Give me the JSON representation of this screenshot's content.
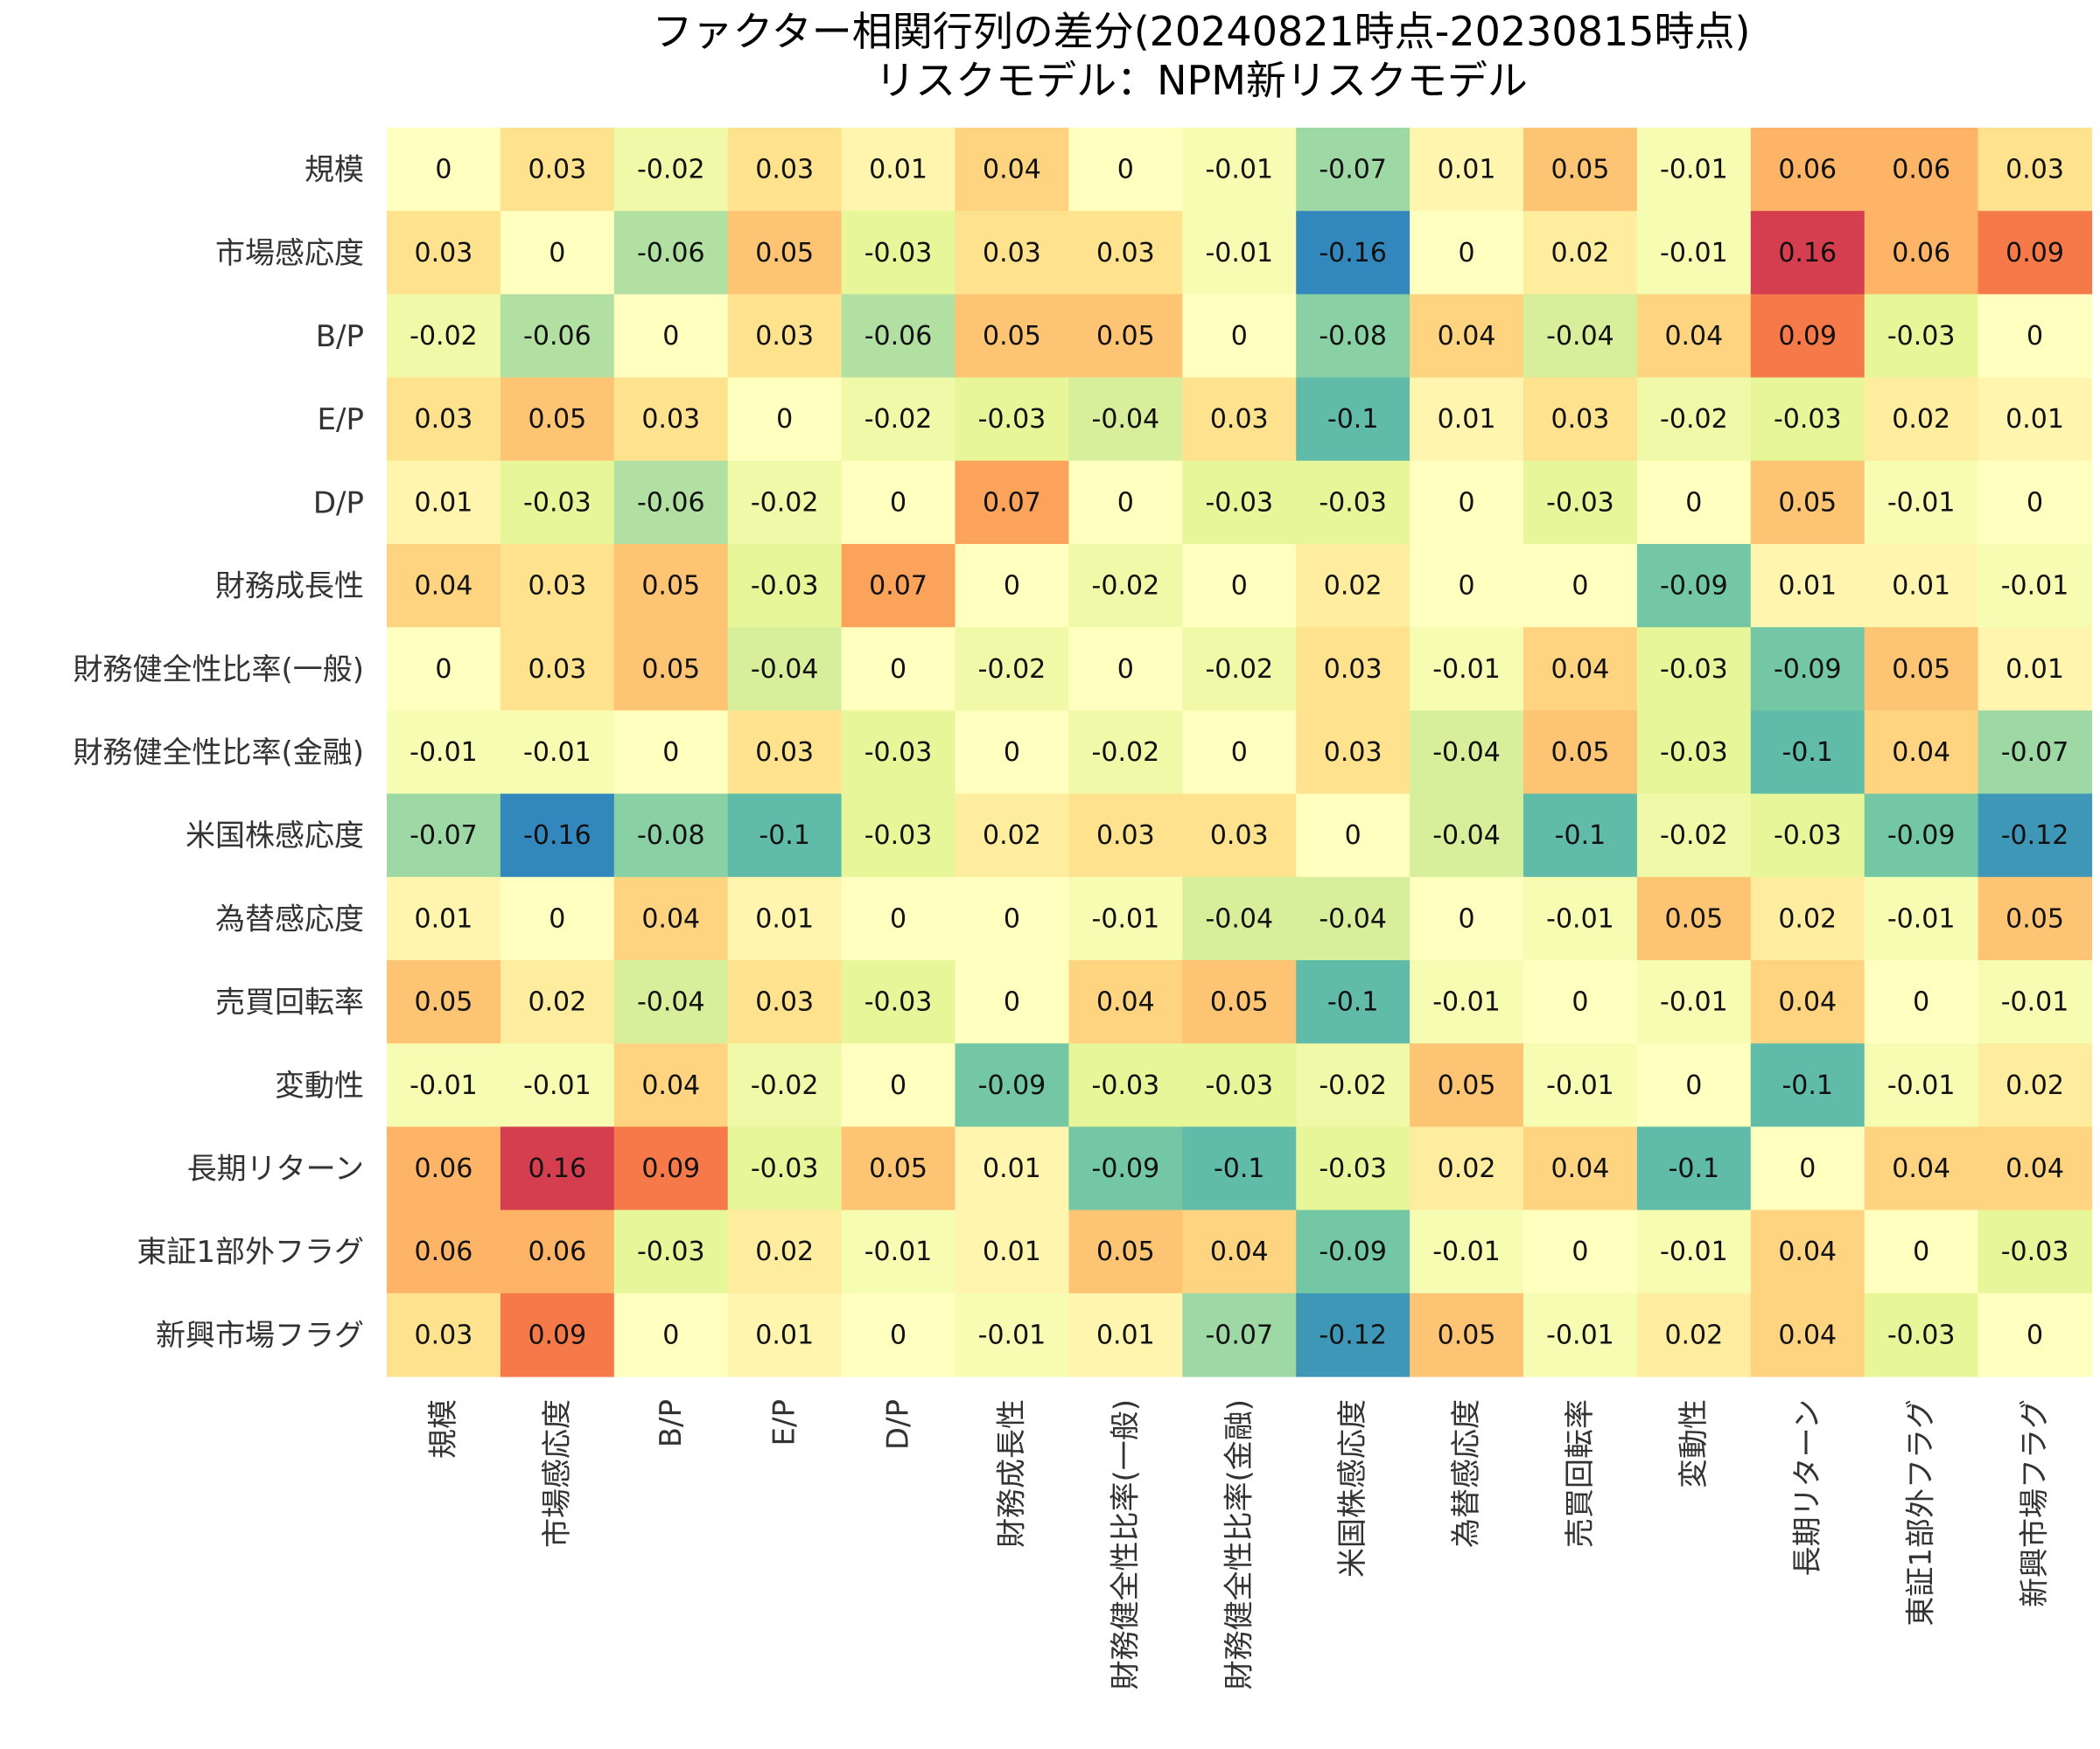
{
  "chart_data": {
    "type": "heatmap",
    "title": "ファクター相関行列の差分(20240821時点-20230815時点)",
    "subtitle": "リスクモデル：NPM新リスクモデル",
    "xlabel": "",
    "ylabel": "",
    "colormap": "Spectral_r",
    "vmin": -0.16,
    "vmax": 0.16,
    "row_labels": [
      "規模",
      "市場感応度",
      "B/P",
      "E/P",
      "D/P",
      "財務成長性",
      "財務健全性比率(一般)",
      "財務健全性比率(金融)",
      "米国株感応度",
      "為替感応度",
      "売買回転率",
      "変動性",
      "長期リターン",
      "東証1部外フラグ",
      "新興市場フラグ"
    ],
    "col_labels": [
      "規模",
      "市場感応度",
      "B/P",
      "E/P",
      "D/P",
      "財務成長性",
      "財務健全性比率(一般)",
      "財務健全性比率(金融)",
      "米国株感応度",
      "為替感応度",
      "売買回転率",
      "変動性",
      "長期リターン",
      "東証1部外フラグ",
      "新興市場フラグ"
    ],
    "values": [
      [
        0,
        0.03,
        -0.02,
        0.03,
        0.01,
        0.04,
        0,
        -0.01,
        -0.07,
        0.01,
        0.05,
        -0.01,
        0.06,
        0.06,
        0.03
      ],
      [
        0.03,
        0,
        -0.06,
        0.05,
        -0.03,
        0.03,
        0.03,
        -0.01,
        -0.16,
        0,
        0.02,
        -0.01,
        0.16,
        0.06,
        0.09
      ],
      [
        -0.02,
        -0.06,
        0,
        0.03,
        -0.06,
        0.05,
        0.05,
        0,
        -0.08,
        0.04,
        -0.04,
        0.04,
        0.09,
        -0.03,
        0
      ],
      [
        0.03,
        0.05,
        0.03,
        0,
        -0.02,
        -0.03,
        -0.04,
        0.03,
        -0.1,
        0.01,
        0.03,
        -0.02,
        -0.03,
        0.02,
        0.01
      ],
      [
        0.01,
        -0.03,
        -0.06,
        -0.02,
        0,
        0.07,
        0,
        -0.03,
        -0.03,
        0,
        -0.03,
        0,
        0.05,
        -0.01,
        0
      ],
      [
        0.04,
        0.03,
        0.05,
        -0.03,
        0.07,
        0,
        -0.02,
        0,
        0.02,
        0,
        0,
        -0.09,
        0.01,
        0.01,
        -0.01
      ],
      [
        0,
        0.03,
        0.05,
        -0.04,
        0,
        -0.02,
        0,
        -0.02,
        0.03,
        -0.01,
        0.04,
        -0.03,
        -0.09,
        0.05,
        0.01
      ],
      [
        -0.01,
        -0.01,
        0,
        0.03,
        -0.03,
        0,
        -0.02,
        0,
        0.03,
        -0.04,
        0.05,
        -0.03,
        -0.1,
        0.04,
        -0.07
      ],
      [
        -0.07,
        -0.16,
        -0.08,
        -0.1,
        -0.03,
        0.02,
        0.03,
        0.03,
        0,
        -0.04,
        -0.1,
        -0.02,
        -0.03,
        -0.09,
        -0.12
      ],
      [
        0.01,
        0,
        0.04,
        0.01,
        0,
        0,
        -0.01,
        -0.04,
        -0.04,
        0,
        -0.01,
        0.05,
        0.02,
        -0.01,
        0.05
      ],
      [
        0.05,
        0.02,
        -0.04,
        0.03,
        -0.03,
        0,
        0.04,
        0.05,
        -0.1,
        -0.01,
        0,
        -0.01,
        0.04,
        0,
        -0.01
      ],
      [
        -0.01,
        -0.01,
        0.04,
        -0.02,
        0,
        -0.09,
        -0.03,
        -0.03,
        -0.02,
        0.05,
        -0.01,
        0,
        -0.1,
        -0.01,
        0.02
      ],
      [
        0.06,
        0.16,
        0.09,
        -0.03,
        0.05,
        0.01,
        -0.09,
        -0.1,
        -0.03,
        0.02,
        0.04,
        -0.1,
        0,
        0.04,
        0.04
      ],
      [
        0.06,
        0.06,
        -0.03,
        0.02,
        -0.01,
        0.01,
        0.05,
        0.04,
        -0.09,
        -0.01,
        0,
        -0.01,
        0.04,
        0,
        -0.03
      ],
      [
        0.03,
        0.09,
        0,
        0.01,
        0,
        -0.01,
        0.01,
        -0.07,
        -0.12,
        0.05,
        -0.01,
        0.02,
        0.04,
        -0.03,
        0
      ]
    ],
    "legend": "none"
  }
}
